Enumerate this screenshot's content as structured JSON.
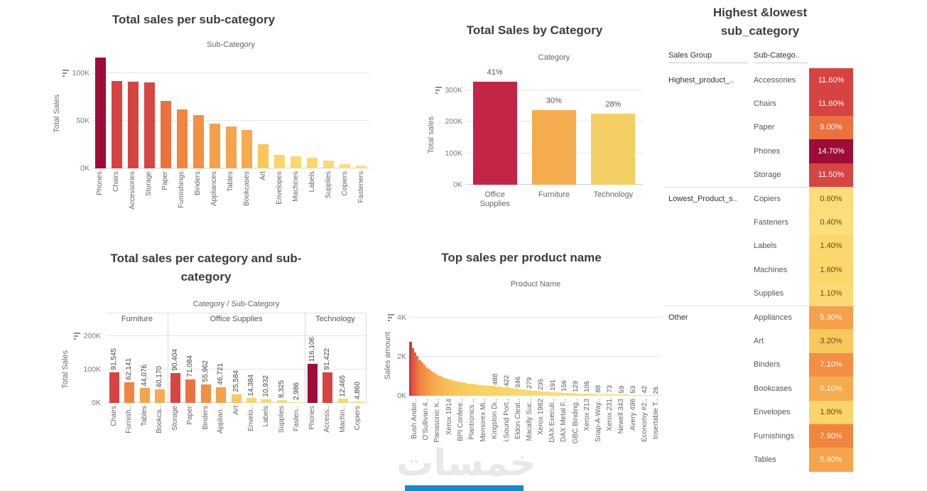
{
  "watermark": {
    "text": "خمسات",
    "bar_color": "#1B87C8"
  },
  "palette": {
    "heat_stops": [
      [
        0,
        "#FCE181"
      ],
      [
        0.18,
        "#FAD05F"
      ],
      [
        0.38,
        "#F6A44C"
      ],
      [
        0.55,
        "#F0823E"
      ],
      [
        0.75,
        "#DD4E42"
      ],
      [
        0.9,
        "#C22542"
      ],
      [
        1,
        "#9E0C38"
      ]
    ]
  },
  "chart_data": [
    {
      "id": "total-sales-per-sub-category",
      "type": "bar",
      "title": "Total sales per sub-category",
      "xlabel": "Sub-Category",
      "ylabel": "Total Sales",
      "ylim": [
        0,
        120000
      ],
      "yticks": [
        {
          "value": 0,
          "label": "0K"
        },
        {
          "value": 50000,
          "label": "50K"
        },
        {
          "value": 100000,
          "label": "100K"
        }
      ],
      "categories": [
        "Phones",
        "Chairs",
        "Accessories",
        "Storage",
        "Paper",
        "Furnishings",
        "Binders",
        "Appliances",
        "Tables",
        "Bookcases",
        "Art",
        "Envelopes",
        "Machines",
        "Labels",
        "Supplies",
        "Copiers",
        "Fasteners"
      ],
      "values": [
        116106,
        91545,
        91422,
        90404,
        71084,
        62141,
        55962,
        46721,
        44076,
        40170,
        25584,
        14384,
        12465,
        10932,
        8325,
        4860,
        2986
      ]
    },
    {
      "id": "total-sales-by-category",
      "type": "bar",
      "title": "Total Sales by Category",
      "xlabel": "Category",
      "ylabel": "Total sales",
      "ylim": [
        0,
        340000
      ],
      "yticks": [
        {
          "value": 0,
          "label": "0K"
        },
        {
          "value": 100000,
          "label": "100K"
        },
        {
          "value": 200000,
          "label": "200K"
        },
        {
          "value": 300000,
          "label": "300K"
        }
      ],
      "categories": [
        "Office Supplies",
        "Furniture",
        "Technology"
      ],
      "values": [
        326382,
        237932,
        224853
      ],
      "percent_labels": [
        "41%",
        "30%",
        "28%"
      ],
      "colors": [
        "#C22545",
        "#F5AC4F",
        "#F3CF63"
      ]
    },
    {
      "id": "highest-and-lowest-sub-category",
      "type": "table",
      "title": "Highest &lowest sub_category",
      "title_lines": [
        "Highest &lowest",
        "sub_category"
      ],
      "columns": [
        "Sales Group",
        "Sub-Catego.."
      ],
      "max_percent": 14.7,
      "groups": [
        {
          "name": "Highest_product_..",
          "rows": [
            {
              "sub": "Accessories",
              "pct": "11.60%"
            },
            {
              "sub": "Chairs",
              "pct": "11.60%"
            },
            {
              "sub": "Paper",
              "pct": "9.00%"
            },
            {
              "sub": "Phones",
              "pct": "14.70%"
            },
            {
              "sub": "Storage",
              "pct": "11.50%"
            }
          ]
        },
        {
          "name": "Lowest_Product_s..",
          "rows": [
            {
              "sub": "Copiers",
              "pct": "0.60%"
            },
            {
              "sub": "Fasteners",
              "pct": "0.40%"
            },
            {
              "sub": "Labels",
              "pct": "1.40%"
            },
            {
              "sub": "Machines",
              "pct": "1.60%"
            },
            {
              "sub": "Supplies",
              "pct": "1.10%"
            }
          ]
        },
        {
          "name": "Other",
          "rows": [
            {
              "sub": "Appliances",
              "pct": "5.90%"
            },
            {
              "sub": "Art",
              "pct": "3.20%"
            },
            {
              "sub": "Binders",
              "pct": "7.10%"
            },
            {
              "sub": "Bookcases",
              "pct": "5.10%"
            },
            {
              "sub": "Envelopes",
              "pct": "1.80%"
            },
            {
              "sub": "Furnishings",
              "pct": "7.90%"
            },
            {
              "sub": "Tables",
              "pct": "5.60%"
            }
          ]
        }
      ]
    },
    {
      "id": "total-sales-per-category-and-sub-category",
      "type": "bar",
      "title": "Total sales per category and sub-category",
      "title_lines": [
        "Total sales per category and sub-",
        "category"
      ],
      "xlabel": "Category / Sub-Category",
      "ylabel": "Total Sales",
      "ylim": [
        0,
        230000
      ],
      "yticks": [
        {
          "value": 0,
          "label": "0K"
        },
        {
          "value": 100000,
          "label": "100K"
        },
        {
          "value": 200000,
          "label": "200K"
        }
      ],
      "groups": [
        {
          "name": "Furniture",
          "categories": [
            "Chairs",
            "Furnish..",
            "Tables",
            "Bookca.."
          ],
          "values": [
            91545,
            62141,
            44076,
            40170
          ],
          "value_labels": [
            "91,545",
            "62,141",
            "44,076",
            "40,170"
          ]
        },
        {
          "name": "Office Supplies",
          "categories": [
            "Storage",
            "Paper",
            "Binders",
            "Applian..",
            "Art",
            "Envelo..",
            "Labels",
            "Supplies",
            "Fasten.."
          ],
          "values": [
            90404,
            71084,
            55962,
            46721,
            25584,
            14384,
            10932,
            8325,
            2986
          ],
          "value_labels": [
            "90,404",
            "71,084",
            "55,962",
            "46,721",
            "25,584",
            "14,384",
            "10,932",
            "8,325",
            "2,986"
          ]
        },
        {
          "name": "Technology",
          "categories": [
            "Phones",
            "Access..",
            "Machin..",
            "Copiers"
          ],
          "values": [
            116106,
            91422,
            12465,
            4860
          ],
          "value_labels": [
            "116,106",
            "91,422",
            "12,465",
            "4,860"
          ]
        }
      ]
    },
    {
      "id": "top-sales-per-product-name",
      "type": "area",
      "title": "Top sales per product name",
      "xlabel": "Product Name",
      "ylabel": "Sales amount",
      "ylim": [
        0,
        4400
      ],
      "yticks": [
        {
          "value": 0,
          "label": "0K"
        },
        {
          "value": 2000,
          "label": "2K"
        },
        {
          "value": 4000,
          "label": "4K"
        }
      ],
      "x_labels": [
        "Bush Andor..",
        "O'Sullivan 4..",
        "Panasonic K..",
        "Xerox 1914",
        "BPI Confere..",
        "Plantronics ..",
        "Memorex Mi..",
        "Kingston Di..",
        "i.Sound Port..",
        "Eldon Cleat..",
        "Macally Suc..",
        "Xerox 1982",
        "DAX Executi..",
        "DAX Metal F..",
        "GBC Binding..",
        "Xerox 213",
        "Snap-A-Way..",
        "Xerox 231",
        "Newell 343",
        "Avery 496",
        "Economy #2..",
        "Insertable T.."
      ],
      "value_labels": [
        "488",
        "422",
        "346",
        "279",
        "235",
        "191",
        "156",
        "129",
        "106",
        "88",
        "73",
        "59",
        "53",
        "42",
        "26"
      ],
      "value_label_start_index": 7,
      "bar_count": 110,
      "curve_anchors": [
        [
          0,
          2900
        ],
        [
          0.015,
          2400
        ],
        [
          0.04,
          1850
        ],
        [
          0.07,
          1450
        ],
        [
          0.1,
          1150
        ],
        [
          0.14,
          900
        ],
        [
          0.19,
          730
        ],
        [
          0.24,
          620
        ],
        [
          0.29,
          540
        ],
        [
          0.341,
          488
        ],
        [
          0.386,
          422
        ],
        [
          0.432,
          346
        ],
        [
          0.477,
          279
        ],
        [
          0.523,
          235
        ],
        [
          0.568,
          191
        ],
        [
          0.614,
          156
        ],
        [
          0.659,
          129
        ],
        [
          0.705,
          106
        ],
        [
          0.75,
          88
        ],
        [
          0.795,
          73
        ],
        [
          0.841,
          59
        ],
        [
          0.886,
          53
        ],
        [
          0.932,
          42
        ],
        [
          0.977,
          26
        ],
        [
          1,
          24
        ]
      ]
    }
  ]
}
